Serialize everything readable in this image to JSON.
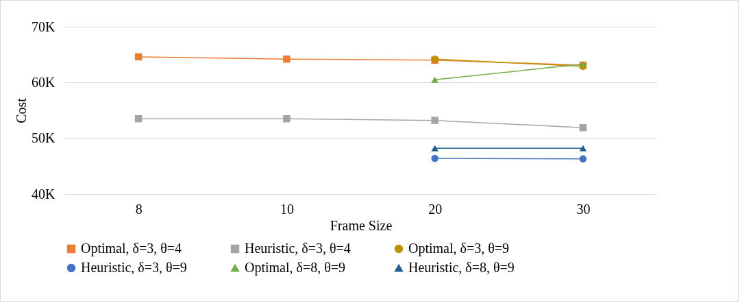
{
  "chart_data": {
    "type": "line",
    "xlabel": "Frame Size",
    "ylabel": "Cost",
    "categories": [
      "8",
      "10",
      "20",
      "30"
    ],
    "series": [
      {
        "name": "Optimal, δ=3, θ=4",
        "color": "#ed7d31",
        "marker": "square",
        "values": [
          64.6,
          64.2,
          64.0,
          63.1
        ]
      },
      {
        "name": "Heuristic, δ=3, θ=4",
        "color": "#a5a5a5",
        "marker": "square",
        "values": [
          53.5,
          53.5,
          53.2,
          51.9
        ]
      },
      {
        "name": "Optimal, δ=3, θ=9",
        "color": "#bf9000",
        "marker": "circle",
        "values": [
          null,
          null,
          64.2,
          62.9
        ]
      },
      {
        "name": "Heuristic, δ=3, θ=9",
        "color": "#4472c4",
        "marker": "circle",
        "values": [
          null,
          null,
          46.4,
          46.3
        ]
      },
      {
        "name": "Optimal, δ=8, θ=9",
        "color": "#70ad47",
        "marker": "triangle",
        "values": [
          null,
          null,
          60.5,
          63.3
        ]
      },
      {
        "name": "Heuristic, δ=8, θ=9",
        "color": "#255e91",
        "marker": "triangle",
        "values": [
          null,
          null,
          48.2,
          48.2
        ]
      }
    ],
    "ylim": [
      40,
      70
    ],
    "yticks": [
      {
        "value": 40,
        "label": "40K"
      },
      {
        "value": 50,
        "label": "50K"
      },
      {
        "value": 60,
        "label": "60K"
      },
      {
        "value": 70,
        "label": "70K"
      }
    ],
    "grid": "y",
    "legend": "bottom",
    "line_style": "solid"
  }
}
